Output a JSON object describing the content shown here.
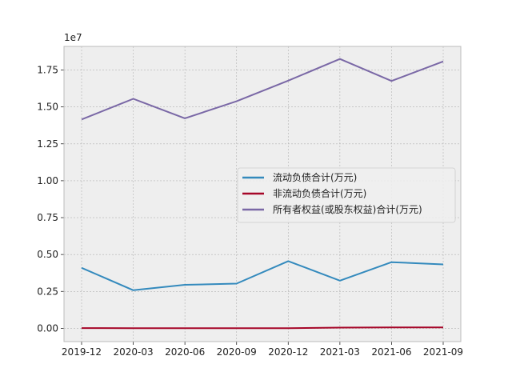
{
  "chart_data": {
    "type": "line",
    "x": [
      "2019-12",
      "2020-03",
      "2020-06",
      "2020-09",
      "2020-12",
      "2021-03",
      "2021-06",
      "2021-09"
    ],
    "y_offset_label": "1e7",
    "y_scale": 10000000,
    "ylim": [
      -0.09,
      1.91
    ],
    "yticks": [
      0.0,
      0.25,
      0.5,
      0.75,
      1.0,
      1.25,
      1.5,
      1.75
    ],
    "ytick_labels": [
      "0.00",
      "0.25",
      "0.50",
      "0.75",
      "1.00",
      "1.25",
      "1.50",
      "1.75"
    ],
    "grid": true,
    "legend_position": "center-right",
    "series": [
      {
        "name": "流动负债合计(万元)",
        "color": "#348abd",
        "values": [
          4100000,
          2580000,
          2950000,
          3030000,
          4550000,
          3230000,
          4480000,
          4330000
        ]
      },
      {
        "name": "非流动负债合计(万元)",
        "color": "#a60628",
        "values": [
          15000,
          10000,
          12000,
          5000,
          10000,
          50000,
          60000,
          60000
        ]
      },
      {
        "name": "所有者权益(或股东权益)合计(万元)",
        "color": "#7a68a6",
        "values": [
          14150000,
          15550000,
          14230000,
          15380000,
          16780000,
          18250000,
          16760000,
          18080000
        ]
      }
    ]
  }
}
